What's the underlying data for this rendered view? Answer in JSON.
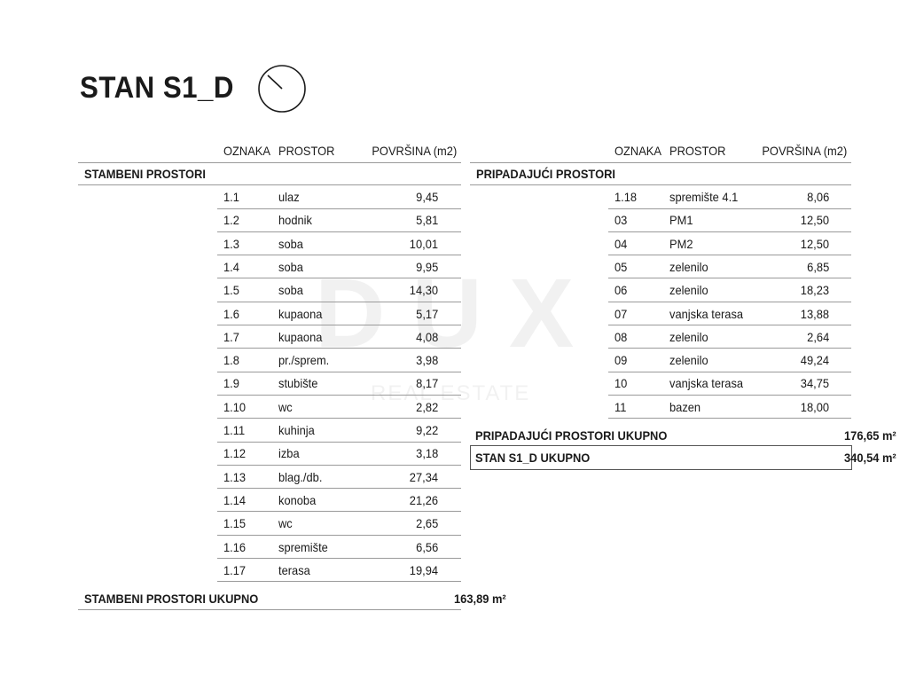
{
  "title": "STAN S1_D",
  "compass_icon": "north-arrow-circle-icon",
  "watermark": {
    "logo": "DUX",
    "sub": "REAL ESTATE"
  },
  "columns": {
    "code": "OZNAKA",
    "room": "PROSTOR",
    "area": "POVRŠINA (m2)"
  },
  "left_table": {
    "section": "STAMBENI PROSTORI",
    "rows": [
      {
        "code": "1.1",
        "room": "ulaz",
        "area": "9,45"
      },
      {
        "code": "1.2",
        "room": "hodnik",
        "area": "5,81"
      },
      {
        "code": "1.3",
        "room": "soba",
        "area": "10,01"
      },
      {
        "code": "1.4",
        "room": "soba",
        "area": "9,95"
      },
      {
        "code": "1.5",
        "room": "soba",
        "area": "14,30"
      },
      {
        "code": "1.6",
        "room": "kupaona",
        "area": "5,17"
      },
      {
        "code": "1.7",
        "room": "kupaona",
        "area": "4,08"
      },
      {
        "code": "1.8",
        "room": "pr./sprem.",
        "area": "3,98"
      },
      {
        "code": "1.9",
        "room": "stubište",
        "area": "8,17"
      },
      {
        "code": "1.10",
        "room": "wc",
        "area": "2,82"
      },
      {
        "code": "1.11",
        "room": "kuhinja",
        "area": "9,22"
      },
      {
        "code": "1.12",
        "room": "izba",
        "area": "3,18"
      },
      {
        "code": "1.13",
        "room": "blag./db.",
        "area": "27,34"
      },
      {
        "code": "1.14",
        "room": "konoba",
        "area": "21,26"
      },
      {
        "code": "1.15",
        "room": "wc",
        "area": "2,65"
      },
      {
        "code": "1.16",
        "room": "spremište",
        "area": "6,56"
      },
      {
        "code": "1.17",
        "room": "terasa",
        "area": "19,94"
      }
    ],
    "total_label": "STAMBENI PROSTORI UKUPNO",
    "total_value": "163,89 m²"
  },
  "right_table": {
    "section": "PRIPADAJUĆI PROSTORI",
    "rows": [
      {
        "code": "1.18",
        "room": "spremište 4.1",
        "area": "8,06"
      },
      {
        "code": "03",
        "room": "PM1",
        "area": "12,50"
      },
      {
        "code": "04",
        "room": "PM2",
        "area": "12,50"
      },
      {
        "code": "05",
        "room": "zelenilo",
        "area": "6,85"
      },
      {
        "code": "06",
        "room": "zelenilo",
        "area": "18,23"
      },
      {
        "code": "07",
        "room": "vanjska terasa",
        "area": "13,88"
      },
      {
        "code": "08",
        "room": "zelenilo",
        "area": "2,64"
      },
      {
        "code": "09",
        "room": "zelenilo",
        "area": "49,24"
      },
      {
        "code": "10",
        "room": "vanjska terasa",
        "area": "34,75"
      },
      {
        "code": "11",
        "room": "bazen",
        "area": "18,00"
      }
    ],
    "total_label": "PRIPADAJUĆI PROSTORI UKUPNO",
    "total_value": "176,65 m²",
    "grand_total_label": "STAN S1_D UKUPNO",
    "grand_total_value": "340,54 m²"
  }
}
